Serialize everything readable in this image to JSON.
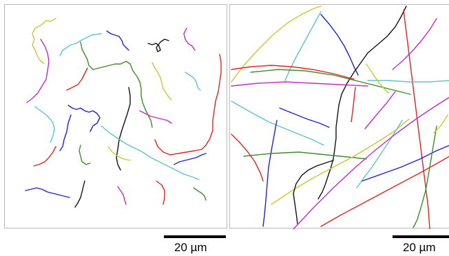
{
  "colors": {
    "blue": "#1f1fd6",
    "red": "#e0231c",
    "green": "#3f8a2a",
    "olive": "#c9c732",
    "cyan": "#5cc5c8",
    "magenta": "#c12bc6",
    "black": "#111111"
  },
  "scale_bars": {
    "left_label": "20 µm",
    "right_label": "20 µm"
  }
}
